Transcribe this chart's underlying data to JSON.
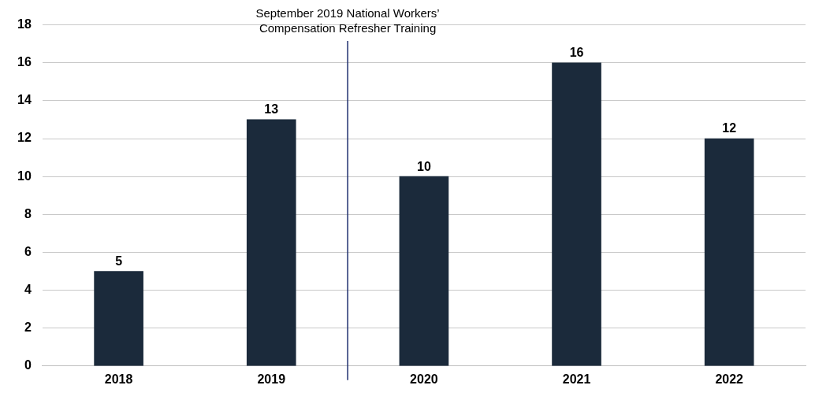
{
  "chart_data": {
    "type": "bar",
    "x": [
      2018,
      2019,
      2020,
      2021,
      2022
    ],
    "values": [
      5,
      13,
      10,
      16,
      12
    ],
    "color": "#1b2a3b",
    "xlim": [
      2017.5,
      2022.5
    ],
    "xticks": [
      2018,
      2019,
      2020,
      2021,
      2022
    ],
    "ylim": [
      0,
      18
    ],
    "yticks": [
      0,
      2,
      4,
      6,
      8,
      10,
      12,
      14,
      16,
      18
    ],
    "grid": "y",
    "data_labels": true,
    "ref_lines": [
      {
        "axis": "x",
        "value": 2019.5,
        "label": "September 2019 National Workers’ Compensation Refresher Training",
        "color": "#1f2f6e"
      }
    ]
  }
}
